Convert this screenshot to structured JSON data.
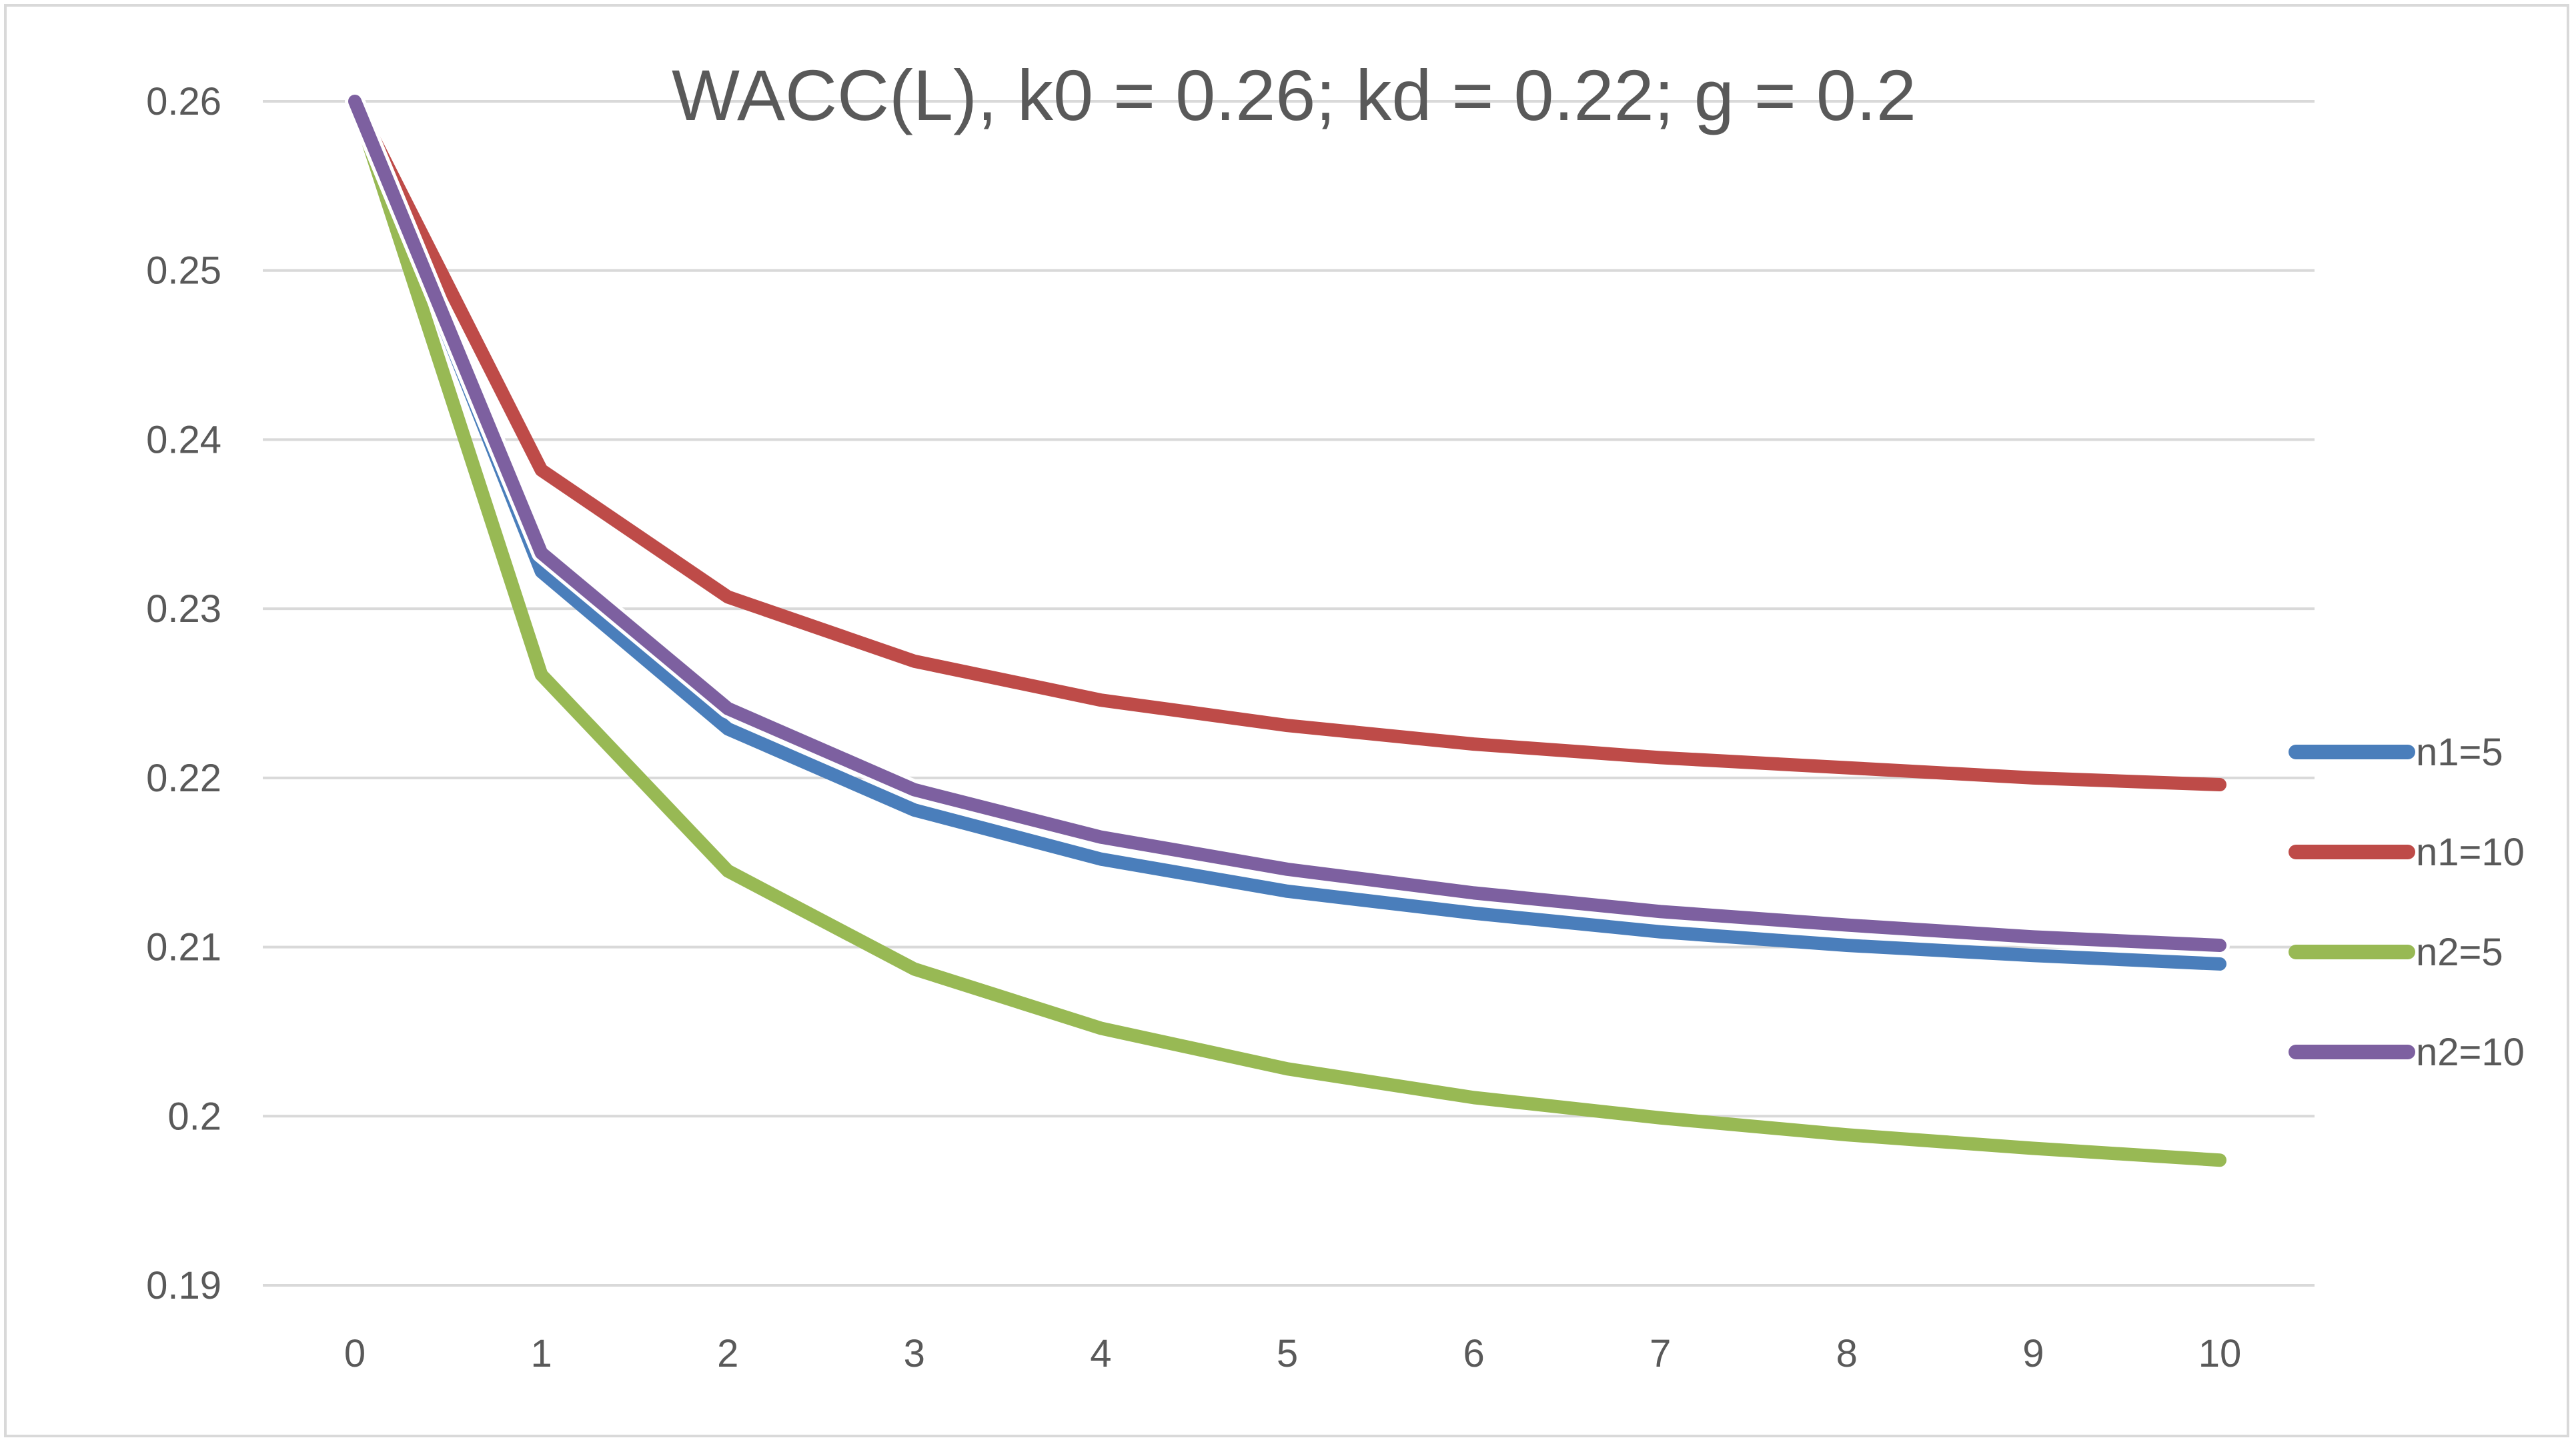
{
  "chart_data": {
    "type": "line",
    "title": "WACC(L), k0 = 0.26; kd = 0.22; g = 0.2",
    "xlabel": "",
    "ylabel": "",
    "x": [
      0,
      1,
      2,
      3,
      4,
      5,
      6,
      7,
      8,
      9,
      10
    ],
    "x_tick_labels": [
      "0",
      "1",
      "2",
      "3",
      "4",
      "5",
      "6",
      "7",
      "8",
      "9",
      "10"
    ],
    "ylim": [
      0.19,
      0.26
    ],
    "y_ticks": [
      0.19,
      0.2,
      0.21,
      0.22,
      0.23,
      0.24,
      0.25,
      0.26
    ],
    "y_tick_labels": [
      "0.19",
      "0.2",
      "0.21",
      "0.22",
      "0.23",
      "0.24",
      "0.25",
      "0.26"
    ],
    "grid": "horizontal",
    "legend_position": "right",
    "series": [
      {
        "name": "n1=5",
        "color": "#4a7ebb",
        "values": [
          0.26,
          0.2322,
          0.2229,
          0.2181,
          0.2152,
          0.2133,
          0.212,
          0.2109,
          0.2101,
          0.2095,
          0.209
        ]
      },
      {
        "name": "n1=10",
        "color": "#be4b48",
        "values": [
          0.26,
          0.2382,
          0.2307,
          0.2269,
          0.2246,
          0.2231,
          0.222,
          0.2212,
          0.2206,
          0.22,
          0.2196
        ]
      },
      {
        "name": "n2=5",
        "color": "#98b954",
        "values": [
          0.26,
          0.2261,
          0.2145,
          0.2087,
          0.2052,
          0.2028,
          0.2011,
          0.1999,
          0.1989,
          0.1981,
          0.1974
        ]
      },
      {
        "name": "n2=10",
        "color": "#7d60a0",
        "values": [
          0.26,
          0.2333,
          0.2241,
          0.2193,
          0.2165,
          0.2146,
          0.2132,
          0.2121,
          0.2113,
          0.2106,
          0.2101
        ]
      }
    ]
  }
}
